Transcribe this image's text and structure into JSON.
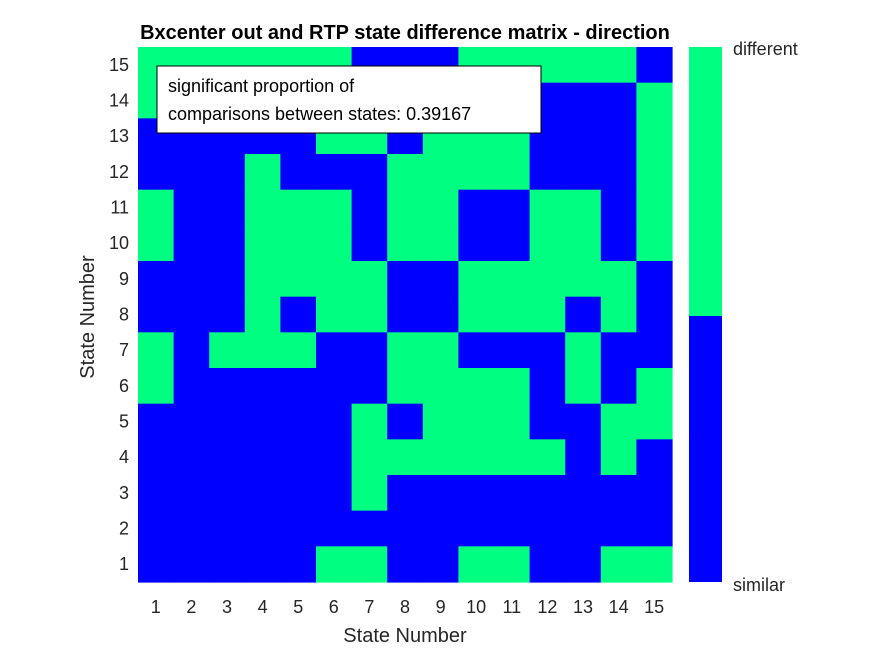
{
  "chart_data": {
    "type": "heatmap",
    "title": "Bxcenter out and RTP state difference matrix - direction",
    "xlabel": "State Number",
    "ylabel": "State Number",
    "x_ticks": [
      "1",
      "2",
      "3",
      "4",
      "5",
      "6",
      "7",
      "8",
      "9",
      "10",
      "11",
      "12",
      "13",
      "14",
      "15"
    ],
    "y_ticks": [
      "1",
      "2",
      "3",
      "4",
      "5",
      "6",
      "7",
      "8",
      "9",
      "10",
      "11",
      "12",
      "13",
      "14",
      "15"
    ],
    "colors": {
      "similar": "#0000FF",
      "different": "#00FF80"
    },
    "colorbar": {
      "labels": [
        "different",
        "similar"
      ],
      "position": "right"
    },
    "annotation": [
      "significant proportion of",
      "comparisons between states: 0.39167"
    ],
    "matrix_rows_from_top": [
      [
        1,
        1,
        1,
        1,
        1,
        1,
        0,
        0,
        0,
        1,
        1,
        1,
        1,
        1,
        0
      ],
      [
        1,
        0,
        0,
        0,
        0,
        0,
        0,
        0,
        0,
        0,
        0,
        0,
        0,
        0,
        1
      ],
      [
        0,
        0,
        0,
        0,
        0,
        1,
        1,
        0,
        1,
        1,
        1,
        0,
        0,
        0,
        1
      ],
      [
        0,
        0,
        0,
        1,
        0,
        0,
        0,
        1,
        1,
        1,
        1,
        0,
        0,
        0,
        1
      ],
      [
        1,
        0,
        0,
        1,
        1,
        1,
        0,
        1,
        1,
        0,
        0,
        1,
        1,
        0,
        1
      ],
      [
        1,
        0,
        0,
        1,
        1,
        1,
        0,
        1,
        1,
        0,
        0,
        1,
        1,
        0,
        1
      ],
      [
        0,
        0,
        0,
        1,
        1,
        1,
        1,
        0,
        0,
        1,
        1,
        1,
        1,
        1,
        0
      ],
      [
        0,
        0,
        0,
        1,
        0,
        1,
        1,
        0,
        0,
        1,
        1,
        1,
        0,
        1,
        0
      ],
      [
        1,
        0,
        1,
        1,
        1,
        0,
        0,
        1,
        1,
        0,
        0,
        0,
        1,
        0,
        0
      ],
      [
        1,
        0,
        0,
        0,
        0,
        0,
        0,
        1,
        1,
        1,
        1,
        0,
        1,
        0,
        1
      ],
      [
        0,
        0,
        0,
        0,
        0,
        0,
        1,
        0,
        1,
        1,
        1,
        0,
        0,
        1,
        1
      ],
      [
        0,
        0,
        0,
        0,
        0,
        0,
        1,
        1,
        1,
        1,
        1,
        1,
        0,
        1,
        0
      ],
      [
        0,
        0,
        0,
        0,
        0,
        0,
        1,
        0,
        0,
        0,
        0,
        0,
        0,
        0,
        0
      ],
      [
        0,
        0,
        0,
        0,
        0,
        0,
        0,
        0,
        0,
        0,
        0,
        0,
        0,
        0,
        0
      ],
      [
        0,
        0,
        0,
        0,
        0,
        1,
        1,
        0,
        0,
        1,
        1,
        0,
        0,
        1,
        1
      ]
    ]
  }
}
